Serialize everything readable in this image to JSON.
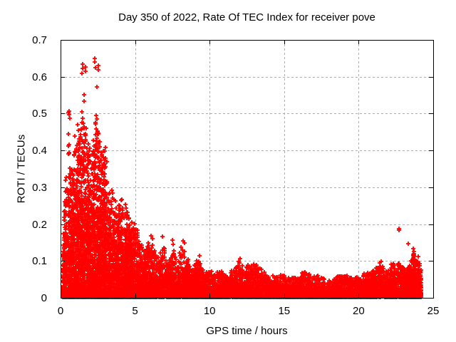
{
  "window": {
    "background": "#ffffff"
  },
  "chart_data": {
    "type": "scatter",
    "title": "Day 350 of 2022, Rate Of TEC Index for receiver pove",
    "xlabel": "GPS time / hours",
    "ylabel": "ROTI / TECUs",
    "xlim": [
      0,
      25
    ],
    "ylim": [
      0,
      0.7
    ],
    "xticks": [
      0,
      5,
      10,
      15,
      20,
      25
    ],
    "yticks": [
      0,
      0.1,
      0.2,
      0.3,
      0.4,
      0.5,
      0.6,
      0.7
    ],
    "grid": true,
    "legend": null,
    "marker": "plus",
    "colors": {
      "points": "#ff0000",
      "grid": "#ababab",
      "axis": "#000000"
    },
    "data_time_range": [
      0.15,
      24.2
    ],
    "point_gen": {
      "seed": 11,
      "skew": 2.5,
      "column_prob": 0.18,
      "value_floor": 0.002,
      "density": [
        [
          0.15,
          0.5,
          450
        ],
        [
          0.5,
          3.0,
          560
        ],
        [
          3.0,
          5.0,
          420
        ],
        [
          5.0,
          6.5,
          300
        ],
        [
          6.5,
          10.0,
          230
        ],
        [
          10.0,
          14.0,
          200
        ],
        [
          14.0,
          19.0,
          185
        ],
        [
          19.0,
          22.0,
          195
        ],
        [
          22.0,
          24.2,
          260
        ]
      ],
      "envelope": [
        [
          0.15,
          0.1
        ],
        [
          0.3,
          0.36
        ],
        [
          0.45,
          0.3
        ],
        [
          0.55,
          0.46
        ],
        [
          0.7,
          0.34
        ],
        [
          0.9,
          0.4
        ],
        [
          1.1,
          0.42
        ],
        [
          1.3,
          0.46
        ],
        [
          1.5,
          0.5
        ],
        [
          1.7,
          0.46
        ],
        [
          1.9,
          0.4
        ],
        [
          2.1,
          0.42
        ],
        [
          2.35,
          0.5
        ],
        [
          2.55,
          0.46
        ],
        [
          2.8,
          0.4
        ],
        [
          3.0,
          0.4
        ],
        [
          3.2,
          0.33
        ],
        [
          3.5,
          0.3
        ],
        [
          3.8,
          0.24
        ],
        [
          4.1,
          0.28
        ],
        [
          4.4,
          0.25
        ],
        [
          4.7,
          0.21
        ],
        [
          5.0,
          0.2
        ],
        [
          5.3,
          0.17
        ],
        [
          5.6,
          0.12
        ],
        [
          5.9,
          0.16
        ],
        [
          6.2,
          0.16
        ],
        [
          6.5,
          0.11
        ],
        [
          6.9,
          0.15
        ],
        [
          7.2,
          0.09
        ],
        [
          7.5,
          0.15
        ],
        [
          7.8,
          0.09
        ],
        [
          8.1,
          0.15
        ],
        [
          8.4,
          0.12
        ],
        [
          8.8,
          0.08
        ],
        [
          9.2,
          0.11
        ],
        [
          9.6,
          0.07
        ],
        [
          10.2,
          0.07
        ],
        [
          10.7,
          0.07
        ],
        [
          11.2,
          0.065
        ],
        [
          11.7,
          0.075
        ],
        [
          12.0,
          0.105
        ],
        [
          12.4,
          0.085
        ],
        [
          12.8,
          0.09
        ],
        [
          13.1,
          0.09
        ],
        [
          13.5,
          0.075
        ],
        [
          13.9,
          0.055
        ],
        [
          14.4,
          0.06
        ],
        [
          14.9,
          0.06
        ],
        [
          15.4,
          0.05
        ],
        [
          15.9,
          0.055
        ],
        [
          16.4,
          0.075
        ],
        [
          16.9,
          0.055
        ],
        [
          17.4,
          0.06
        ],
        [
          17.9,
          0.045
        ],
        [
          18.4,
          0.05
        ],
        [
          18.9,
          0.065
        ],
        [
          19.4,
          0.06
        ],
        [
          19.9,
          0.055
        ],
        [
          20.4,
          0.065
        ],
        [
          20.9,
          0.07
        ],
        [
          21.4,
          0.095
        ],
        [
          21.9,
          0.07
        ],
        [
          22.3,
          0.1
        ],
        [
          22.7,
          0.095
        ],
        [
          23.1,
          0.075
        ],
        [
          23.45,
          0.09
        ],
        [
          23.7,
          0.125
        ],
        [
          23.95,
          0.11
        ],
        [
          24.15,
          0.08
        ]
      ],
      "outliers": [
        [
          0.52,
          0.502
        ],
        [
          0.55,
          0.507
        ],
        [
          0.58,
          0.497
        ],
        [
          0.6,
          0.488
        ],
        [
          1.44,
          0.505
        ],
        [
          1.45,
          0.61
        ],
        [
          1.47,
          0.622
        ],
        [
          1.5,
          0.634
        ],
        [
          1.65,
          0.627
        ],
        [
          1.68,
          0.614
        ],
        [
          1.58,
          0.551
        ],
        [
          1.6,
          0.533
        ],
        [
          2.28,
          0.64
        ],
        [
          2.3,
          0.65
        ],
        [
          2.33,
          0.625
        ],
        [
          2.52,
          0.631
        ],
        [
          2.55,
          0.619
        ],
        [
          2.44,
          0.573
        ],
        [
          1.15,
          0.47
        ],
        [
          1.2,
          0.455
        ],
        [
          1.35,
          0.443
        ],
        [
          2.35,
          0.475
        ],
        [
          2.4,
          0.458
        ],
        [
          2.55,
          0.447
        ],
        [
          0.95,
          0.438
        ],
        [
          3.0,
          0.408
        ],
        [
          2.95,
          0.398
        ],
        [
          6.05,
          0.168
        ],
        [
          6.15,
          0.16
        ],
        [
          6.85,
          0.166
        ],
        [
          7.5,
          0.157
        ],
        [
          8.2,
          0.155
        ],
        [
          8.3,
          0.148
        ],
        [
          9.3,
          0.114
        ],
        [
          12.05,
          0.107
        ],
        [
          21.5,
          0.099
        ],
        [
          22.7,
          0.187
        ],
        [
          22.72,
          0.184
        ],
        [
          23.35,
          0.147
        ],
        [
          23.68,
          0.133
        ],
        [
          23.7,
          0.126
        ],
        [
          23.72,
          0.119
        ],
        [
          24.0,
          0.112
        ]
      ]
    }
  }
}
